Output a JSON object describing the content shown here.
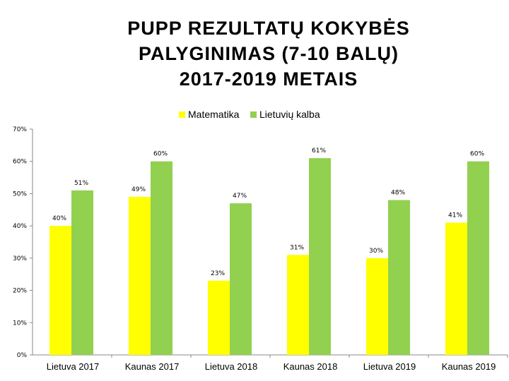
{
  "title_lines": [
    "PUPP REZULTATŲ KOKYBĖS",
    "PALYGINIMAS (7-10 BALŲ)",
    "2017-2019 METAIS"
  ],
  "chart_data": {
    "type": "bar",
    "title": "PUPP REZULTATŲ KOKYBĖS PALYGINIMAS (7-10 BALŲ) 2017-2019 METAIS",
    "categories": [
      "Lietuva 2017",
      "Kaunas 2017",
      "Lietuva 2018",
      "Kaunas 2018",
      "Lietuva 2019",
      "Kaunas 2019"
    ],
    "series": [
      {
        "name": "Matematika",
        "color": "#ffff00",
        "values": [
          40,
          49,
          23,
          31,
          30,
          41
        ],
        "labels": [
          "40%",
          "49%",
          "23%",
          "31%",
          "30%",
          "41%"
        ]
      },
      {
        "name": "Lietuvių kalba",
        "color": "#92d050",
        "values": [
          51,
          60,
          47,
          61,
          48,
          60
        ],
        "labels": [
          "51%",
          "60%",
          "47%",
          "61%",
          "48%",
          "60%"
        ]
      }
    ],
    "ylim": [
      0,
      70
    ],
    "yticks": [
      "0%",
      "10%",
      "20%",
      "30%",
      "40%",
      "50%",
      "60%",
      "70%"
    ],
    "grid": false,
    "legend": "top"
  }
}
